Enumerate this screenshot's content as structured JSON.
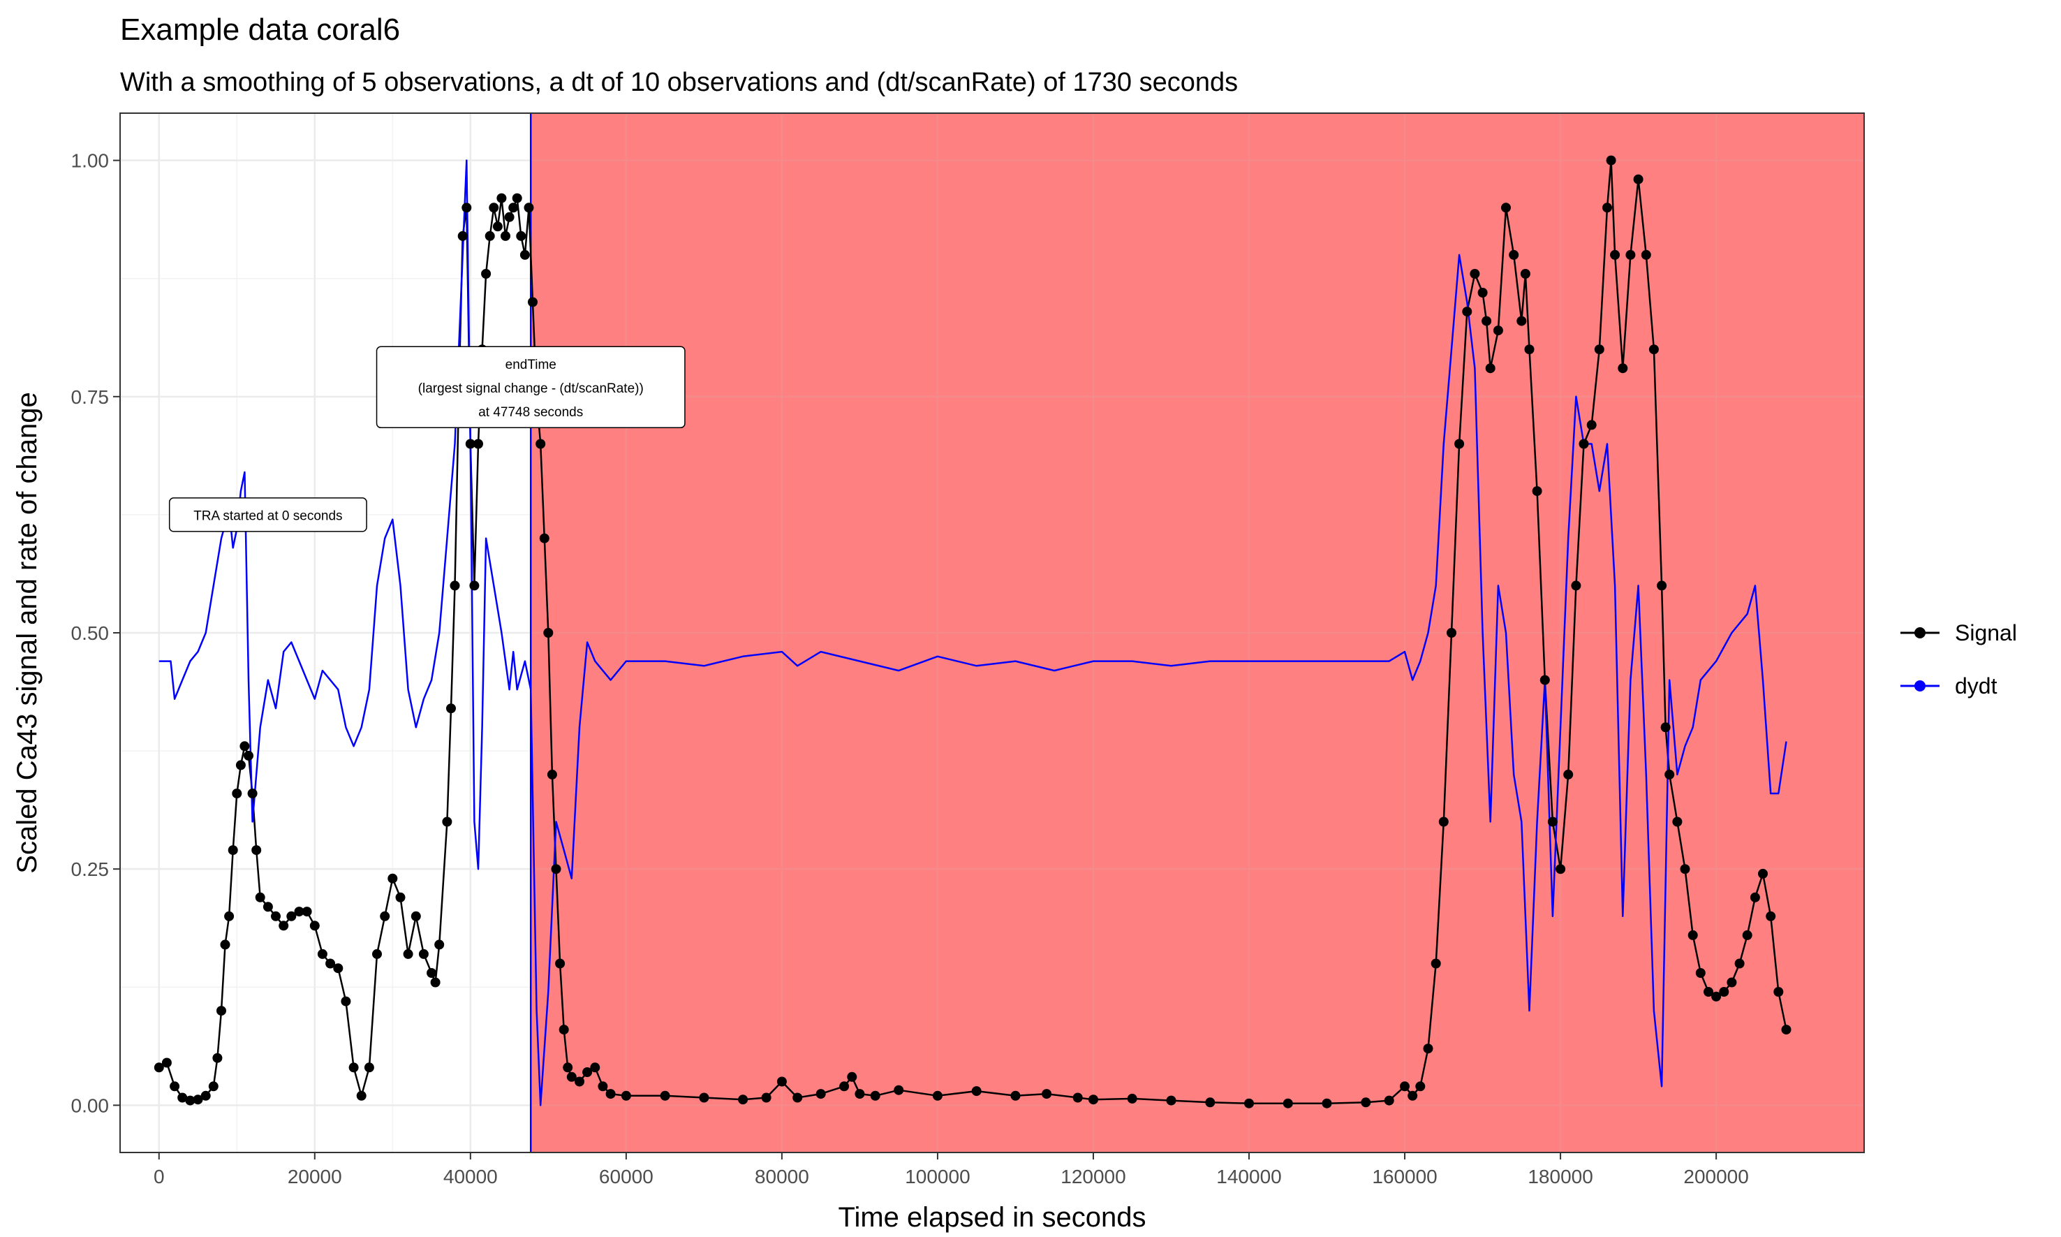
{
  "chart_data": {
    "type": "line",
    "title": "Example data coral6",
    "subtitle": "With a smoothing of 5 observations, a dt of 10 observations and (dt/scanRate) of 1730 seconds",
    "xlabel": "Time elapsed in seconds",
    "ylabel": "Scaled Ca43 signal and rate of change",
    "xlim": [
      -5000,
      219000
    ],
    "ylim": [
      -0.05,
      1.05
    ],
    "x_ticks": [
      0,
      20000,
      40000,
      60000,
      80000,
      100000,
      120000,
      140000,
      160000,
      180000,
      200000
    ],
    "y_ticks": [
      0.0,
      0.25,
      0.5,
      0.75,
      1.0
    ],
    "y_tick_labels": [
      "0.00",
      "0.25",
      "0.50",
      "0.75",
      "1.00"
    ],
    "grid": true,
    "legend_position": "right",
    "shaded_region": {
      "x_start": 47748,
      "x_end": 219000,
      "color": "#ff8080"
    },
    "vline": {
      "x": 47748,
      "color": "#0000ff"
    },
    "annotations": [
      {
        "lines": [
          "TRA started at 0 seconds"
        ],
        "x": 14000,
        "y": 0.625
      },
      {
        "lines": [
          "endTime",
          "(largest signal change - (dt/scanRate))",
          "at 47748 seconds"
        ],
        "x": 47748,
        "y": 0.76
      }
    ],
    "series": [
      {
        "name": "Signal",
        "color": "#000000",
        "markers": true,
        "points": [
          [
            0,
            0.04
          ],
          [
            1000,
            0.045
          ],
          [
            2000,
            0.02
          ],
          [
            3000,
            0.008
          ],
          [
            4000,
            0.005
          ],
          [
            5000,
            0.006
          ],
          [
            6000,
            0.01
          ],
          [
            7000,
            0.02
          ],
          [
            7500,
            0.05
          ],
          [
            8000,
            0.1
          ],
          [
            8500,
            0.17
          ],
          [
            9000,
            0.2
          ],
          [
            9500,
            0.27
          ],
          [
            10000,
            0.33
          ],
          [
            10500,
            0.36
          ],
          [
            11000,
            0.38
          ],
          [
            11500,
            0.37
          ],
          [
            12000,
            0.33
          ],
          [
            12500,
            0.27
          ],
          [
            13000,
            0.22
          ],
          [
            14000,
            0.21
          ],
          [
            15000,
            0.2
          ],
          [
            16000,
            0.19
          ],
          [
            17000,
            0.2
          ],
          [
            18000,
            0.205
          ],
          [
            19000,
            0.205
          ],
          [
            20000,
            0.19
          ],
          [
            21000,
            0.16
          ],
          [
            22000,
            0.15
          ],
          [
            23000,
            0.145
          ],
          [
            24000,
            0.11
          ],
          [
            25000,
            0.04
          ],
          [
            26000,
            0.01
          ],
          [
            27000,
            0.04
          ],
          [
            28000,
            0.16
          ],
          [
            29000,
            0.2
          ],
          [
            30000,
            0.24
          ],
          [
            31000,
            0.22
          ],
          [
            32000,
            0.16
          ],
          [
            33000,
            0.2
          ],
          [
            34000,
            0.16
          ],
          [
            35000,
            0.14
          ],
          [
            35500,
            0.13
          ],
          [
            36000,
            0.17
          ],
          [
            37000,
            0.3
          ],
          [
            37500,
            0.42
          ],
          [
            38000,
            0.55
          ],
          [
            38500,
            0.75
          ],
          [
            39000,
            0.92
          ],
          [
            39500,
            0.95
          ],
          [
            40000,
            0.7
          ],
          [
            40500,
            0.55
          ],
          [
            41000,
            0.7
          ],
          [
            41500,
            0.8
          ],
          [
            42000,
            0.88
          ],
          [
            42500,
            0.92
          ],
          [
            43000,
            0.95
          ],
          [
            43500,
            0.93
          ],
          [
            44000,
            0.96
          ],
          [
            44500,
            0.92
          ],
          [
            45000,
            0.94
          ],
          [
            45500,
            0.95
          ],
          [
            46000,
            0.96
          ],
          [
            46500,
            0.92
          ],
          [
            47000,
            0.9
          ],
          [
            47500,
            0.95
          ],
          [
            48000,
            0.85
          ],
          [
            48500,
            0.75
          ],
          [
            49000,
            0.7
          ],
          [
            49500,
            0.6
          ],
          [
            50000,
            0.5
          ],
          [
            50500,
            0.35
          ],
          [
            51000,
            0.25
          ],
          [
            51500,
            0.15
          ],
          [
            52000,
            0.08
          ],
          [
            52500,
            0.04
          ],
          [
            53000,
            0.03
          ],
          [
            54000,
            0.025
          ],
          [
            55000,
            0.035
          ],
          [
            56000,
            0.04
          ],
          [
            57000,
            0.02
          ],
          [
            58000,
            0.012
          ],
          [
            60000,
            0.01
          ],
          [
            65000,
            0.01
          ],
          [
            70000,
            0.008
          ],
          [
            75000,
            0.006
          ],
          [
            78000,
            0.008
          ],
          [
            80000,
            0.025
          ],
          [
            82000,
            0.008
          ],
          [
            85000,
            0.012
          ],
          [
            88000,
            0.02
          ],
          [
            89000,
            0.03
          ],
          [
            90000,
            0.012
          ],
          [
            92000,
            0.01
          ],
          [
            95000,
            0.016
          ],
          [
            100000,
            0.01
          ],
          [
            105000,
            0.015
          ],
          [
            110000,
            0.01
          ],
          [
            114000,
            0.012
          ],
          [
            118000,
            0.008
          ],
          [
            120000,
            0.006
          ],
          [
            125000,
            0.007
          ],
          [
            130000,
            0.005
          ],
          [
            135000,
            0.003
          ],
          [
            140000,
            0.002
          ],
          [
            145000,
            0.002
          ],
          [
            150000,
            0.002
          ],
          [
            155000,
            0.003
          ],
          [
            158000,
            0.005
          ],
          [
            160000,
            0.02
          ],
          [
            161000,
            0.01
          ],
          [
            162000,
            0.02
          ],
          [
            163000,
            0.06
          ],
          [
            164000,
            0.15
          ],
          [
            165000,
            0.3
          ],
          [
            166000,
            0.5
          ],
          [
            167000,
            0.7
          ],
          [
            168000,
            0.84
          ],
          [
            169000,
            0.88
          ],
          [
            170000,
            0.86
          ],
          [
            170500,
            0.83
          ],
          [
            171000,
            0.78
          ],
          [
            172000,
            0.82
          ],
          [
            173000,
            0.95
          ],
          [
            174000,
            0.9
          ],
          [
            175000,
            0.83
          ],
          [
            175500,
            0.88
          ],
          [
            176000,
            0.8
          ],
          [
            177000,
            0.65
          ],
          [
            178000,
            0.45
          ],
          [
            179000,
            0.3
          ],
          [
            180000,
            0.25
          ],
          [
            181000,
            0.35
          ],
          [
            182000,
            0.55
          ],
          [
            183000,
            0.7
          ],
          [
            184000,
            0.72
          ],
          [
            185000,
            0.8
          ],
          [
            186000,
            0.95
          ],
          [
            186500,
            1.0
          ],
          [
            187000,
            0.9
          ],
          [
            188000,
            0.78
          ],
          [
            189000,
            0.9
          ],
          [
            190000,
            0.98
          ],
          [
            191000,
            0.9
          ],
          [
            192000,
            0.8
          ],
          [
            193000,
            0.55
          ],
          [
            193500,
            0.4
          ],
          [
            194000,
            0.35
          ],
          [
            195000,
            0.3
          ],
          [
            196000,
            0.25
          ],
          [
            197000,
            0.18
          ],
          [
            198000,
            0.14
          ],
          [
            199000,
            0.12
          ],
          [
            200000,
            0.115
          ],
          [
            201000,
            0.12
          ],
          [
            202000,
            0.13
          ],
          [
            203000,
            0.15
          ],
          [
            204000,
            0.18
          ],
          [
            205000,
            0.22
          ],
          [
            206000,
            0.245
          ],
          [
            207000,
            0.2
          ],
          [
            208000,
            0.12
          ],
          [
            209000,
            0.08
          ]
        ]
      },
      {
        "name": "dydt",
        "color": "#0000ff",
        "markers": false,
        "points": [
          [
            0,
            0.47
          ],
          [
            1500,
            0.47
          ],
          [
            2000,
            0.43
          ],
          [
            3000,
            0.45
          ],
          [
            4000,
            0.47
          ],
          [
            5000,
            0.48
          ],
          [
            6000,
            0.5
          ],
          [
            7000,
            0.55
          ],
          [
            8000,
            0.6
          ],
          [
            9000,
            0.63
          ],
          [
            9500,
            0.59
          ],
          [
            10000,
            0.61
          ],
          [
            10500,
            0.65
          ],
          [
            11000,
            0.67
          ],
          [
            11500,
            0.45
          ],
          [
            12000,
            0.3
          ],
          [
            13000,
            0.4
          ],
          [
            14000,
            0.45
          ],
          [
            15000,
            0.42
          ],
          [
            16000,
            0.48
          ],
          [
            17000,
            0.49
          ],
          [
            18000,
            0.47
          ],
          [
            19000,
            0.45
          ],
          [
            20000,
            0.43
          ],
          [
            21000,
            0.46
          ],
          [
            22000,
            0.45
          ],
          [
            23000,
            0.44
          ],
          [
            24000,
            0.4
          ],
          [
            25000,
            0.38
          ],
          [
            26000,
            0.4
          ],
          [
            27000,
            0.44
          ],
          [
            28000,
            0.55
          ],
          [
            29000,
            0.6
          ],
          [
            30000,
            0.62
          ],
          [
            31000,
            0.55
          ],
          [
            32000,
            0.44
          ],
          [
            33000,
            0.4
          ],
          [
            34000,
            0.43
          ],
          [
            35000,
            0.45
          ],
          [
            36000,
            0.5
          ],
          [
            37000,
            0.6
          ],
          [
            38000,
            0.7
          ],
          [
            39000,
            0.9
          ],
          [
            39500,
            1.0
          ],
          [
            40000,
            0.7
          ],
          [
            40500,
            0.3
          ],
          [
            41000,
            0.25
          ],
          [
            41500,
            0.4
          ],
          [
            42000,
            0.6
          ],
          [
            43000,
            0.55
          ],
          [
            44000,
            0.5
          ],
          [
            45000,
            0.44
          ],
          [
            45500,
            0.48
          ],
          [
            46000,
            0.44
          ],
          [
            47000,
            0.47
          ],
          [
            47748,
            0.44
          ],
          [
            48500,
            0.1
          ],
          [
            49000,
            0.0
          ],
          [
            50000,
            0.12
          ],
          [
            51000,
            0.3
          ],
          [
            52000,
            0.27
          ],
          [
            53000,
            0.24
          ],
          [
            54000,
            0.4
          ],
          [
            55000,
            0.49
          ],
          [
            56000,
            0.47
          ],
          [
            57000,
            0.46
          ],
          [
            58000,
            0.45
          ],
          [
            60000,
            0.47
          ],
          [
            65000,
            0.47
          ],
          [
            70000,
            0.465
          ],
          [
            75000,
            0.475
          ],
          [
            80000,
            0.48
          ],
          [
            82000,
            0.465
          ],
          [
            85000,
            0.48
          ],
          [
            90000,
            0.47
          ],
          [
            95000,
            0.46
          ],
          [
            100000,
            0.475
          ],
          [
            105000,
            0.465
          ],
          [
            110000,
            0.47
          ],
          [
            115000,
            0.46
          ],
          [
            120000,
            0.47
          ],
          [
            125000,
            0.47
          ],
          [
            130000,
            0.465
          ],
          [
            135000,
            0.47
          ],
          [
            140000,
            0.47
          ],
          [
            150000,
            0.47
          ],
          [
            155000,
            0.47
          ],
          [
            158000,
            0.47
          ],
          [
            160000,
            0.48
          ],
          [
            161000,
            0.45
          ],
          [
            162000,
            0.47
          ],
          [
            163000,
            0.5
          ],
          [
            164000,
            0.55
          ],
          [
            165000,
            0.7
          ],
          [
            166000,
            0.8
          ],
          [
            167000,
            0.9
          ],
          [
            168000,
            0.85
          ],
          [
            169000,
            0.78
          ],
          [
            170000,
            0.5
          ],
          [
            171000,
            0.3
          ],
          [
            172000,
            0.55
          ],
          [
            173000,
            0.5
          ],
          [
            174000,
            0.35
          ],
          [
            175000,
            0.3
          ],
          [
            176000,
            0.1
          ],
          [
            177000,
            0.3
          ],
          [
            178000,
            0.45
          ],
          [
            179000,
            0.2
          ],
          [
            180000,
            0.4
          ],
          [
            181000,
            0.6
          ],
          [
            182000,
            0.75
          ],
          [
            183000,
            0.7
          ],
          [
            184000,
            0.7
          ],
          [
            185000,
            0.65
          ],
          [
            186000,
            0.7
          ],
          [
            187000,
            0.55
          ],
          [
            188000,
            0.2
          ],
          [
            189000,
            0.45
          ],
          [
            190000,
            0.55
          ],
          [
            191000,
            0.35
          ],
          [
            192000,
            0.1
          ],
          [
            193000,
            0.02
          ],
          [
            194000,
            0.45
          ],
          [
            195000,
            0.35
          ],
          [
            196000,
            0.38
          ],
          [
            197000,
            0.4
          ],
          [
            198000,
            0.45
          ],
          [
            200000,
            0.47
          ],
          [
            202000,
            0.5
          ],
          [
            204000,
            0.52
          ],
          [
            205000,
            0.55
          ],
          [
            206000,
            0.45
          ],
          [
            207000,
            0.33
          ],
          [
            208000,
            0.33
          ],
          [
            209000,
            0.385
          ]
        ]
      }
    ]
  }
}
